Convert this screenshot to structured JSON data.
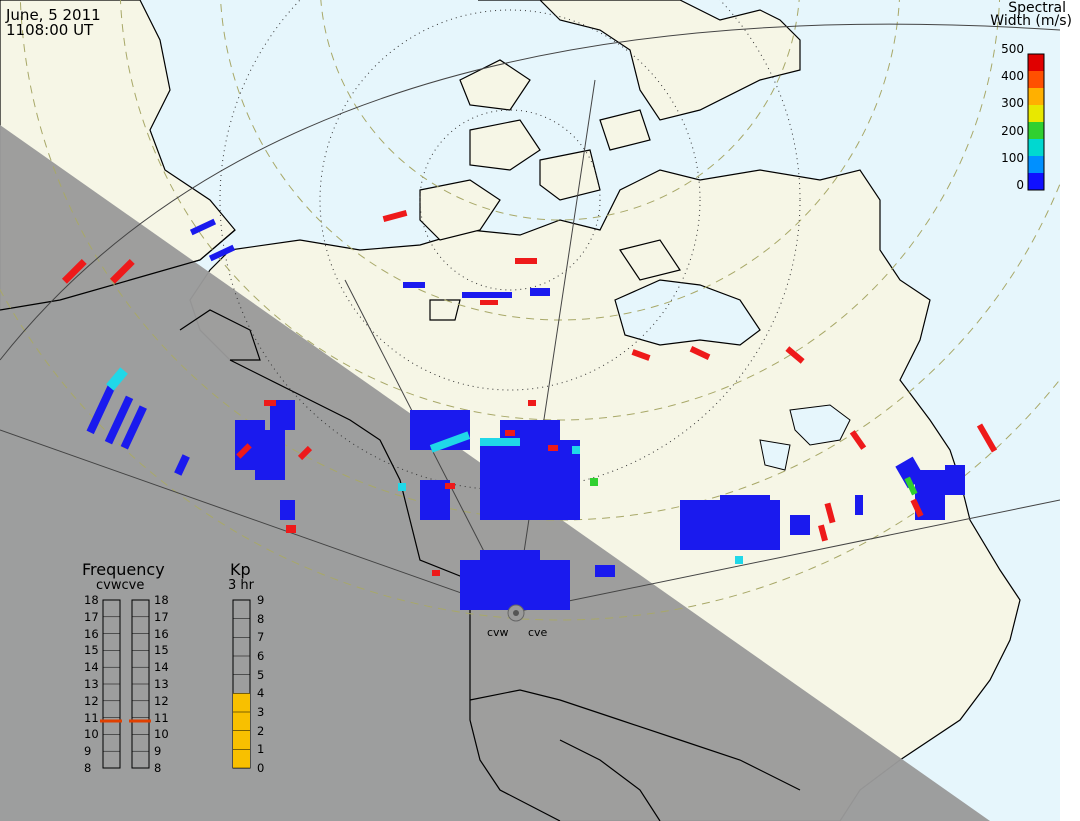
{
  "header": {
    "date": "June, 5 2011",
    "time": "1108:00 UT"
  },
  "colorbar": {
    "title_line1": "Spectral",
    "title_line2": "Width (m/s)",
    "ticks": [
      "500",
      "400",
      "300",
      "200",
      "100",
      "0"
    ],
    "colors": [
      "#e00000",
      "#ff5000",
      "#ffb000",
      "#e8e800",
      "#30d030",
      "#00d8d0",
      "#0090ff",
      "#1010ff"
    ]
  },
  "frequency": {
    "title": "Frequency",
    "radars": "cvwcve",
    "scale_left": [
      "18",
      "17",
      "16",
      "15",
      "14",
      "13",
      "12",
      "11",
      "10",
      "9",
      "8"
    ],
    "scale_right": [
      "18",
      "17",
      "16",
      "15",
      "14",
      "13",
      "12",
      "11",
      "10",
      "9",
      "8"
    ],
    "cvw_mhz": 10.8,
    "cve_mhz": 10.8
  },
  "kp": {
    "title": "Kp",
    "subtitle": "3 hr",
    "scale": [
      "9",
      "8",
      "7",
      "6",
      "5",
      "4",
      "3",
      "2",
      "1",
      "0"
    ],
    "value": 4,
    "fill_color": "#f8c000"
  },
  "radars": [
    "cvw",
    "cve"
  ],
  "colors": {
    "land_day": "#f6f6e6",
    "ocean_day": "#e6f6fc",
    "night": "#9a9a9a",
    "low_width": "#1a1aee",
    "high_width": "#ee1a1a",
    "mid_cyan": "#20d8e8",
    "mid_green": "#30d030"
  }
}
